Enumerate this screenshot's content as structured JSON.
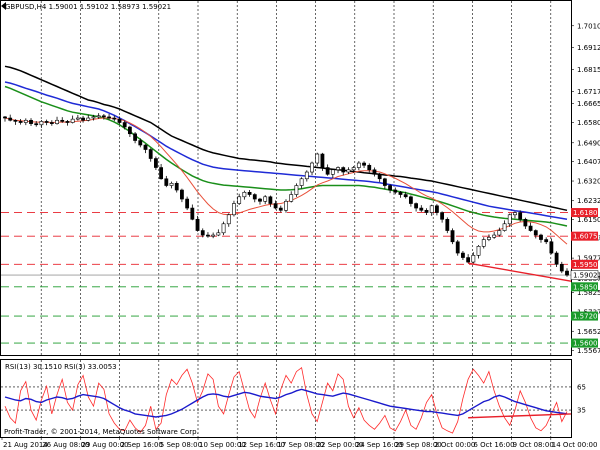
{
  "header": {
    "main_text": "GBPUSD,H4  1.59001 1.59102 1.58973 1.59021",
    "rsi_text": "RSI(13) 30.1510  RSI(3) 33.0053"
  },
  "watermark": "Profit-Trader, © 2001-2014, MetaQuotes Software Corp.",
  "colors": {
    "candle": "#000000",
    "ma_black": "#000000",
    "ma_blue": "#1f2bd6",
    "ma_green": "#1a8f1a",
    "ma_red": "#e8503a",
    "resistance": "#e8202a",
    "support": "#1a9a2a",
    "trendline": "#e8202a",
    "rsi_fast": "#ff2a2a",
    "rsi_slow": "#1a1acc",
    "grid": "#000000"
  },
  "chart_data": [
    {
      "type": "candlestick",
      "symbol": "GBPUSD",
      "timeframe": "H4",
      "ohlc_current": {
        "open": 1.59001,
        "high": 1.59102,
        "low": 1.58973,
        "close": 1.59021
      },
      "ylim": [
        1.5547,
        1.712
      ],
      "y_tick_labels": [
        "1.70100",
        "1.69125",
        "1.68150",
        "1.67175",
        "1.66650",
        "1.65800",
        "1.64900",
        "1.64075",
        "1.63200",
        "1.62325",
        "1.61500",
        "1.60675",
        "1.59775",
        "1.58875",
        "1.58250",
        "1.57375",
        "1.56525",
        "1.55675"
      ],
      "x_tick_labels": [
        "21 Aug 2014",
        "26 Aug 08:00",
        "29 Aug 00:00",
        "2 Sep 16:00",
        "5 Sep 08:00",
        "10 Sep 00:00",
        "12 Sep 16:00",
        "17 Sep 08:00",
        "22 Sep 00:00",
        "24 Sep 16:00",
        "29 Sep 08:00",
        "2 Oct 00:00",
        "6 Oct 16:00",
        "9 Oct 08:00",
        "14 Oct 00:00"
      ],
      "levels": [
        {
          "price": 1.618,
          "label": "1.61800",
          "kind": "resistance"
        },
        {
          "price": 1.6075,
          "label": "1.60750",
          "kind": "resistance"
        },
        {
          "price": 1.595,
          "label": "1.59500",
          "kind": "resistance"
        },
        {
          "price": 1.59021,
          "label": "1.59021",
          "kind": "current"
        },
        {
          "price": 1.585,
          "label": "1.58500",
          "kind": "support"
        },
        {
          "price": 1.572,
          "label": "1.57200",
          "kind": "support"
        },
        {
          "price": 1.56,
          "label": "1.56000",
          "kind": "support"
        }
      ],
      "closes": [
        1.66,
        1.659,
        1.6585,
        1.658,
        1.659,
        1.6575,
        1.657,
        1.6585,
        1.658,
        1.6575,
        1.659,
        1.6585,
        1.658,
        1.6595,
        1.66,
        1.659,
        1.66,
        1.6605,
        1.661,
        1.6605,
        1.66,
        1.6595,
        1.658,
        1.656,
        1.653,
        1.65,
        1.648,
        1.646,
        1.642,
        1.638,
        1.633,
        1.63,
        1.631,
        1.628,
        1.624,
        1.62,
        1.615,
        1.61,
        1.608,
        1.6075,
        1.608,
        1.609,
        1.613,
        1.617,
        1.622,
        1.625,
        1.627,
        1.626,
        1.624,
        1.623,
        1.625,
        1.622,
        1.62,
        1.619,
        1.623,
        1.626,
        1.63,
        1.633,
        1.636,
        1.64,
        1.644,
        1.638,
        1.635,
        1.637,
        1.638,
        1.636,
        1.637,
        1.638,
        1.64,
        1.639,
        1.637,
        1.635,
        1.633,
        1.63,
        1.628,
        1.627,
        1.626,
        1.625,
        1.622,
        1.62,
        1.619,
        1.618,
        1.621,
        1.618,
        1.615,
        1.61,
        1.605,
        1.6,
        1.598,
        1.596,
        1.599,
        1.603,
        1.606,
        1.607,
        1.608,
        1.61,
        1.613,
        1.617,
        1.618,
        1.615,
        1.612,
        1.61,
        1.608,
        1.606,
        1.605,
        1.6,
        1.595,
        1.592,
        1.5902
      ],
      "ma_black": [
        1.683,
        1.6825,
        1.6818,
        1.681,
        1.68,
        1.679,
        1.678,
        1.677,
        1.676,
        1.675,
        1.674,
        1.673,
        1.672,
        1.671,
        1.67,
        1.669,
        1.668,
        1.6675,
        1.6668,
        1.666,
        1.6655,
        1.6648,
        1.664,
        1.663,
        1.662,
        1.661,
        1.66,
        1.659,
        1.658,
        1.6565,
        1.655,
        1.6535,
        1.652,
        1.651,
        1.65,
        1.649,
        1.648,
        1.647,
        1.646,
        1.6452,
        1.6445,
        1.644,
        1.6435,
        1.643,
        1.6425,
        1.642,
        1.6418,
        1.6415,
        1.6413,
        1.641,
        1.6408,
        1.6405,
        1.64,
        1.6398,
        1.6395,
        1.6392,
        1.639,
        1.6388,
        1.6385,
        1.6383,
        1.638,
        1.6378,
        1.6375,
        1.6372,
        1.637,
        1.6368,
        1.6365,
        1.6362,
        1.636,
        1.6357,
        1.6355,
        1.6352,
        1.635,
        1.6347,
        1.6345,
        1.6342,
        1.634,
        1.6337,
        1.6333,
        1.633,
        1.6327,
        1.6323,
        1.632,
        1.6315,
        1.631,
        1.6305,
        1.63,
        1.6295,
        1.629,
        1.6285,
        1.628,
        1.6275,
        1.627,
        1.6265,
        1.626,
        1.6255,
        1.625,
        1.6245,
        1.624,
        1.6235,
        1.623,
        1.6225,
        1.622,
        1.6215,
        1.621,
        1.6205,
        1.62,
        1.6195,
        1.619
      ],
      "ma_blue": [
        1.676,
        1.6755,
        1.6748,
        1.674,
        1.6732,
        1.6725,
        1.6718,
        1.671,
        1.6702,
        1.6695,
        1.6688,
        1.668,
        1.6672,
        1.6665,
        1.666,
        1.6655,
        1.665,
        1.6645,
        1.664,
        1.6632,
        1.6622,
        1.6612,
        1.66,
        1.6588,
        1.6575,
        1.6562,
        1.6548,
        1.6535,
        1.652,
        1.6505,
        1.649,
        1.6475,
        1.6462,
        1.645,
        1.6438,
        1.6426,
        1.6415,
        1.6405,
        1.6395,
        1.6388,
        1.6382,
        1.6378,
        1.6375,
        1.6372,
        1.637,
        1.6368,
        1.6366,
        1.6364,
        1.6362,
        1.636,
        1.6358,
        1.6356,
        1.6354,
        1.6352,
        1.635,
        1.6348,
        1.6346,
        1.6344,
        1.6342,
        1.634,
        1.6338,
        1.6336,
        1.6334,
        1.6332,
        1.633,
        1.6328,
        1.6326,
        1.6324,
        1.6322,
        1.632,
        1.6318,
        1.6315,
        1.6312,
        1.6308,
        1.6304,
        1.63,
        1.6296,
        1.6292,
        1.6288,
        1.6284,
        1.628,
        1.6276,
        1.6272,
        1.6268,
        1.6262,
        1.6256,
        1.625,
        1.6244,
        1.6238,
        1.6232,
        1.6226,
        1.622,
        1.6214,
        1.6208,
        1.6204,
        1.62,
        1.6196,
        1.6192,
        1.6188,
        1.6185,
        1.6182,
        1.6178,
        1.6174,
        1.617,
        1.6166,
        1.6162,
        1.6158,
        1.6154,
        1.615
      ],
      "ma_green": [
        1.674,
        1.6732,
        1.6722,
        1.6712,
        1.6702,
        1.6692,
        1.6682,
        1.6672,
        1.6664,
        1.6656,
        1.6648,
        1.664,
        1.6632,
        1.6626,
        1.6622,
        1.6618,
        1.6614,
        1.661,
        1.6606,
        1.66,
        1.6592,
        1.6582,
        1.657,
        1.6555,
        1.654,
        1.6522,
        1.6505,
        1.6488,
        1.647,
        1.6452,
        1.6434,
        1.6416,
        1.64,
        1.6385,
        1.637,
        1.6356,
        1.6343,
        1.6332,
        1.6322,
        1.6315,
        1.631,
        1.6306,
        1.6302,
        1.63,
        1.6298,
        1.6296,
        1.6294,
        1.6292,
        1.629,
        1.6288,
        1.6286,
        1.6284,
        1.6282,
        1.628,
        1.628,
        1.6281,
        1.6283,
        1.6286,
        1.629,
        1.6294,
        1.6298,
        1.63,
        1.63,
        1.63,
        1.63,
        1.63,
        1.63,
        1.63,
        1.63,
        1.6298,
        1.6295,
        1.6292,
        1.6288,
        1.6284,
        1.628,
        1.6276,
        1.6272,
        1.6268,
        1.6262,
        1.6256,
        1.625,
        1.6244,
        1.6238,
        1.6232,
        1.6225,
        1.6218,
        1.621,
        1.6202,
        1.6194,
        1.6186,
        1.618,
        1.6174,
        1.6168,
        1.6164,
        1.616,
        1.6157,
        1.6154,
        1.6152,
        1.615,
        1.6148,
        1.6146,
        1.6144,
        1.6142,
        1.614,
        1.6138,
        1.6135,
        1.613,
        1.6125,
        1.612
      ],
      "ma_red": [
        1.66,
        1.6595,
        1.659,
        1.6588,
        1.6586,
        1.6584,
        1.6582,
        1.6582,
        1.6582,
        1.658,
        1.6581,
        1.6582,
        1.6582,
        1.6584,
        1.6586,
        1.6588,
        1.659,
        1.6594,
        1.6598,
        1.66,
        1.66,
        1.6598,
        1.6594,
        1.6588,
        1.6578,
        1.6566,
        1.6552,
        1.6536,
        1.6518,
        1.6496,
        1.6472,
        1.6446,
        1.642,
        1.6394,
        1.6366,
        1.6336,
        1.6304,
        1.6272,
        1.6244,
        1.6218,
        1.6196,
        1.618,
        1.6172,
        1.617,
        1.6172,
        1.6178,
        1.6186,
        1.6194,
        1.62,
        1.6206,
        1.6212,
        1.6216,
        1.6218,
        1.622,
        1.6226,
        1.6234,
        1.6244,
        1.6256,
        1.627,
        1.6286,
        1.6302,
        1.6312,
        1.632,
        1.633,
        1.634,
        1.6346,
        1.6352,
        1.6358,
        1.6364,
        1.6366,
        1.6366,
        1.6364,
        1.636,
        1.6352,
        1.6342,
        1.6332,
        1.632,
        1.6308,
        1.6294,
        1.628,
        1.6266,
        1.6254,
        1.6244,
        1.6232,
        1.6218,
        1.6202,
        1.6184,
        1.6164,
        1.6144,
        1.6124,
        1.6108,
        1.6098,
        1.6094,
        1.6094,
        1.6098,
        1.6104,
        1.6112,
        1.6122,
        1.6132,
        1.6138,
        1.614,
        1.6138,
        1.6134,
        1.6126,
        1.6116,
        1.61,
        1.608,
        1.606,
        1.604
      ],
      "trendline": [
        [
          89,
          1.5955
        ],
        [
          108,
          1.588
        ]
      ]
    },
    {
      "type": "line",
      "title": "RSI",
      "ylim": [
        0,
        100
      ],
      "y_tick_labels": [
        "65",
        "35"
      ],
      "levels": [
        65,
        35
      ],
      "series": [
        {
          "name": "RSI(13)",
          "values": [
            52,
            50,
            48,
            47,
            50,
            49,
            46,
            45,
            48,
            50,
            52,
            51,
            49,
            50,
            53,
            55,
            54,
            53,
            52,
            50,
            46,
            42,
            38,
            35,
            33,
            30,
            29,
            28,
            27,
            26,
            27,
            28,
            30,
            33,
            36,
            40,
            44,
            48,
            52,
            55,
            56,
            55,
            53,
            52,
            54,
            56,
            58,
            57,
            55,
            53,
            52,
            51,
            50,
            52,
            55,
            57,
            60,
            62,
            60,
            58,
            56,
            55,
            54,
            53,
            55,
            57,
            56,
            54,
            52,
            50,
            48,
            46,
            44,
            42,
            40,
            39,
            38,
            37,
            36,
            35,
            34,
            33,
            33,
            32,
            31,
            30,
            29,
            28,
            30,
            34,
            38,
            42,
            46,
            48,
            52,
            54,
            52,
            49,
            46,
            44,
            42,
            40,
            38,
            36,
            34,
            33,
            32,
            31,
            30.15
          ]
        },
        {
          "name": "RSI(3)",
          "values": [
            40,
            25,
            18,
            60,
            72,
            35,
            22,
            48,
            66,
            30,
            55,
            75,
            45,
            35,
            68,
            80,
            52,
            40,
            70,
            62,
            30,
            18,
            10,
            8,
            22,
            12,
            6,
            15,
            40,
            10,
            18,
            55,
            75,
            68,
            80,
            88,
            70,
            45,
            60,
            82,
            75,
            40,
            30,
            55,
            78,
            85,
            60,
            35,
            25,
            50,
            70,
            48,
            30,
            62,
            80,
            70,
            85,
            90,
            55,
            30,
            20,
            45,
            70,
            60,
            82,
            75,
            40,
            25,
            38,
            22,
            15,
            10,
            18,
            28,
            12,
            8,
            20,
            35,
            15,
            10,
            25,
            45,
            55,
            30,
            12,
            8,
            5,
            20,
            50,
            75,
            88,
            80,
            70,
            85,
            60,
            40,
            25,
            15,
            35,
            60,
            45,
            25,
            12,
            8,
            15,
            30,
            45,
            20,
            33.01
          ]
        }
      ],
      "trendline": [
        [
          89,
          25
        ],
        [
          108,
          30
        ]
      ]
    }
  ]
}
